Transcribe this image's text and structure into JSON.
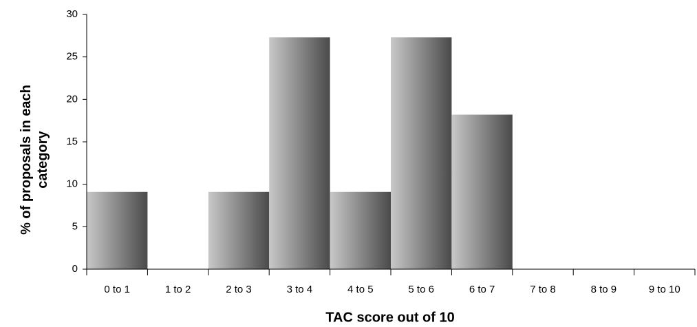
{
  "chart_data": {
    "type": "bar",
    "xlabel": "TAC score out of 10",
    "ylabel": "% of proposals in each category",
    "categories": [
      "0 to 1",
      "1 to 2",
      "2 to 3",
      "3 to 4",
      "4 to 5",
      "5 to 6",
      "6 to 7",
      "7 to 8",
      "8 to 9",
      "9 to 10"
    ],
    "values": [
      9.1,
      0,
      9.1,
      27.3,
      9.1,
      27.3,
      18.2,
      0,
      0,
      0
    ],
    "gradient": [
      "#c8c8c8",
      "#4a4a4a"
    ],
    "ylim": [
      0,
      30
    ],
    "yticks": [
      0,
      5,
      10,
      15,
      20,
      25,
      30
    ],
    "grid": false
  }
}
